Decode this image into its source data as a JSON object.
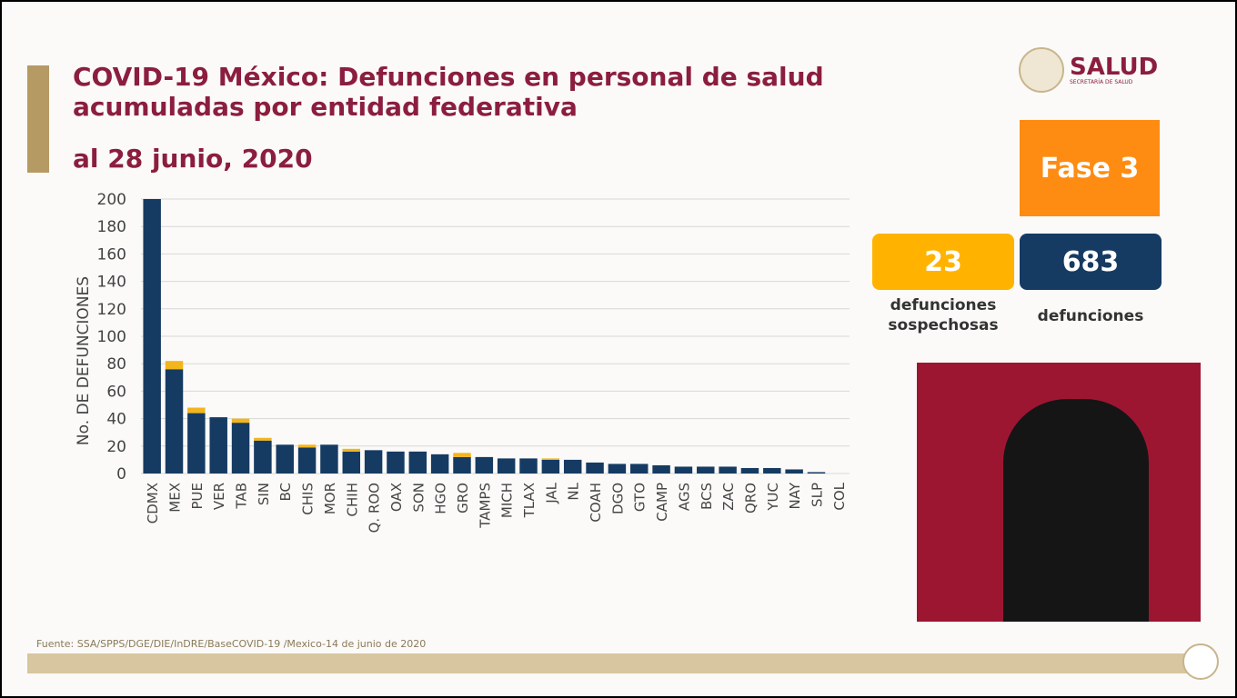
{
  "header": {
    "title_line1": "COVID-19 México: Defunciones en personal de salud",
    "title_line2": "acumuladas por entidad federativa",
    "subtitle": "al 28 junio, 2020"
  },
  "logo": {
    "name": "SALUD",
    "sub": "SECRETARÍA DE SALUD"
  },
  "phase": "Fase 3",
  "stats": {
    "suspected_value": "23",
    "suspected_label_1": "defunciones",
    "suspected_label_2": "sospechosas",
    "confirmed_value": "683",
    "confirmed_label": "defunciones"
  },
  "source": "Fuente: SSA/SPPS/DGE/DIE/InDRE/BaseCOVID-19 /Mexico-14 de junio de 2020",
  "colors": {
    "confirmed": "#163b63",
    "suspected": "#f2b51c",
    "title": "#8b1e3f",
    "phase": "#ff8c12"
  },
  "chart_data": {
    "type": "bar",
    "stacked": true,
    "ylabel": "No. DE DEFUNCIONES",
    "ylim": [
      0,
      200
    ],
    "yticks": [
      0,
      20,
      40,
      60,
      80,
      100,
      120,
      140,
      160,
      180,
      200
    ],
    "grid": true,
    "categories": [
      "CDMX",
      "MEX",
      "PUE",
      "VER",
      "TAB",
      "SIN",
      "BC",
      "CHIS",
      "MOR",
      "CHIH",
      "Q. ROO",
      "OAX",
      "SON",
      "HGO",
      "GRO",
      "TAMPS",
      "MICH",
      "TLAX",
      "JAL",
      "NL",
      "COAH",
      "DGO",
      "GTO",
      "CAMP",
      "AGS",
      "BCS",
      "ZAC",
      "QRO",
      "YUC",
      "NAY",
      "SLP",
      "COL"
    ],
    "series": [
      {
        "values": [
          200,
          76,
          44,
          41,
          37,
          24,
          21,
          19,
          21,
          16,
          17,
          16,
          16,
          14,
          12,
          12,
          11,
          11,
          10,
          10,
          8,
          7,
          7,
          6,
          5,
          5,
          5,
          4,
          4,
          3,
          1,
          0
        ]
      },
      {
        "values": [
          0,
          6,
          4,
          0,
          3,
          2,
          0,
          2,
          0,
          2,
          0,
          0,
          0,
          0,
          3,
          0,
          0,
          0,
          1,
          0,
          0,
          0,
          0,
          0,
          0,
          0,
          0,
          0,
          0,
          0,
          0,
          0
        ]
      }
    ]
  }
}
